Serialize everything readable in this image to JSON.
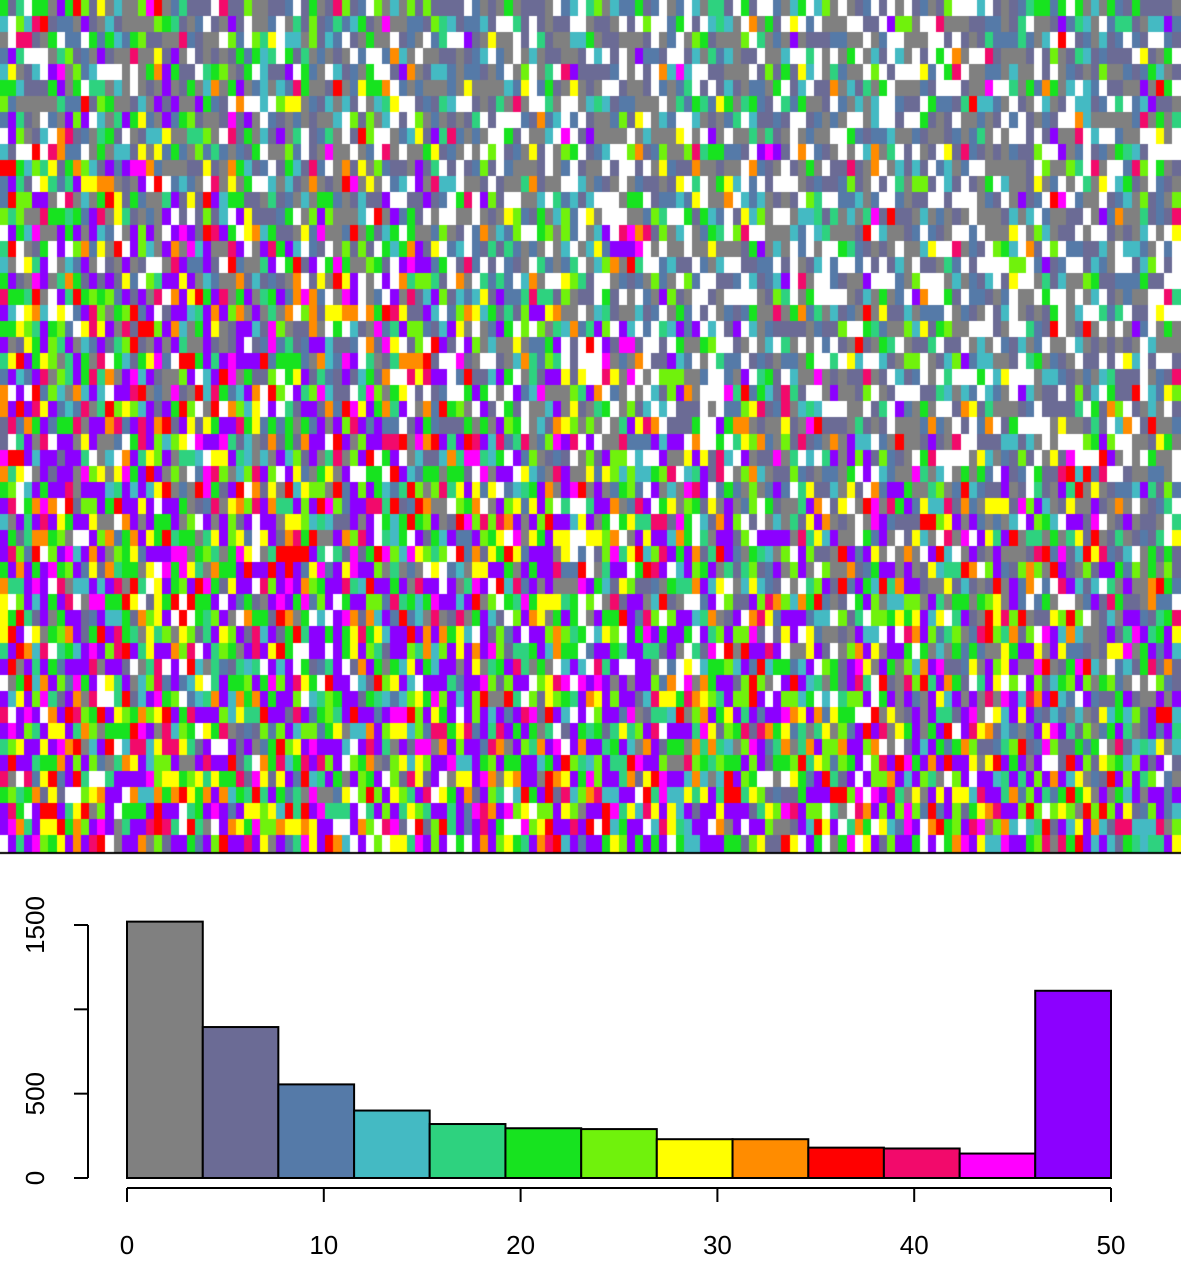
{
  "chart_data": [
    {
      "type": "heatmap",
      "color_scale": {
        "bin_width": 3.85,
        "colors": [
          "#808080",
          "#6b6b95",
          "#557aa8",
          "#44bac3",
          "#2ed27f",
          "#17e31f",
          "#70f20c",
          "#ffff00",
          "#ff8c00",
          "#ff0000",
          "#f20a6b",
          "#ff00ff",
          "#8c00ff"
        ]
      },
      "nodata_color": "#ffffff",
      "grid": false,
      "axes": false
    },
    {
      "type": "bar",
      "subtype": "histogram",
      "title": "",
      "xlabel": "",
      "ylabel": "",
      "xlim": [
        0,
        50
      ],
      "ylim": [
        0,
        1500
      ],
      "x_ticks": [
        0,
        10,
        20,
        30,
        40,
        50
      ],
      "y_ticks": [
        0,
        500,
        1500
      ],
      "bins": [
        {
          "start": 0.0,
          "end": 3.85,
          "count": 1520,
          "color": "#808080"
        },
        {
          "start": 3.85,
          "end": 7.69,
          "count": 895,
          "color": "#6b6b95"
        },
        {
          "start": 7.69,
          "end": 11.54,
          "count": 555,
          "color": "#557aa8"
        },
        {
          "start": 11.54,
          "end": 15.38,
          "count": 400,
          "color": "#44bac3"
        },
        {
          "start": 15.38,
          "end": 19.23,
          "count": 320,
          "color": "#2ed27f"
        },
        {
          "start": 19.23,
          "end": 23.08,
          "count": 295,
          "color": "#17e31f"
        },
        {
          "start": 23.08,
          "end": 26.92,
          "count": 290,
          "color": "#70f20c"
        },
        {
          "start": 26.92,
          "end": 30.77,
          "count": 230,
          "color": "#ffff00"
        },
        {
          "start": 30.77,
          "end": 34.62,
          "count": 230,
          "color": "#ff8c00"
        },
        {
          "start": 34.62,
          "end": 38.46,
          "count": 180,
          "color": "#ff0000"
        },
        {
          "start": 38.46,
          "end": 42.31,
          "count": 175,
          "color": "#f20a6b"
        },
        {
          "start": 42.31,
          "end": 46.15,
          "count": 145,
          "color": "#ff00ff"
        },
        {
          "start": 46.15,
          "end": 50.0,
          "count": 1110,
          "color": "#8c00ff"
        }
      ]
    }
  ]
}
